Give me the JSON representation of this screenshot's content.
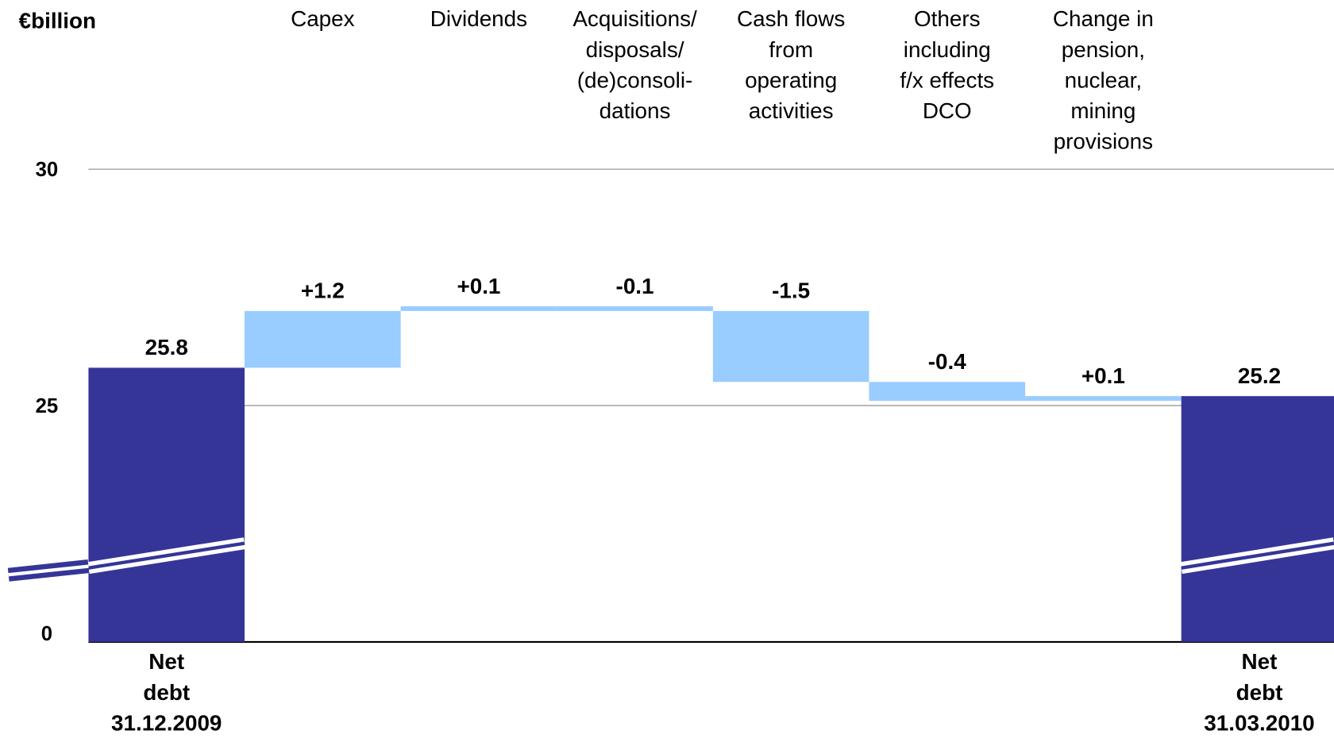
{
  "chart_data": {
    "type": "waterfall",
    "title": "€billion",
    "categories": [
      "Net\ndebt\n31.12.2009",
      "Capex",
      "Dividends",
      "Acquisitions/\ndisposals/\n(de)consoli-\ndations",
      "Cash flows\nfrom\noperating\nactivities",
      "Others\nincluding\nf/x effects\nDCO",
      "Change in\npension,\nnuclear,\nmining\nprovisions",
      "Net\ndebt\n31.03.2010"
    ],
    "values": [
      25.8,
      1.2,
      0.1,
      -0.1,
      -1.5,
      -0.4,
      0.1,
      25.2
    ],
    "value_labels": [
      "25.8",
      "+1.2",
      "+0.1",
      "-0.1",
      "-1.5",
      "-0.4",
      "+0.1",
      "25.2"
    ],
    "is_total": [
      true,
      false,
      false,
      false,
      false,
      false,
      false,
      true
    ],
    "colors": {
      "total": "#353598",
      "change": "#99ccff"
    },
    "ylim": [
      0,
      30
    ],
    "yticks": [
      0,
      25,
      30
    ],
    "axis_break": true,
    "grid": true
  }
}
